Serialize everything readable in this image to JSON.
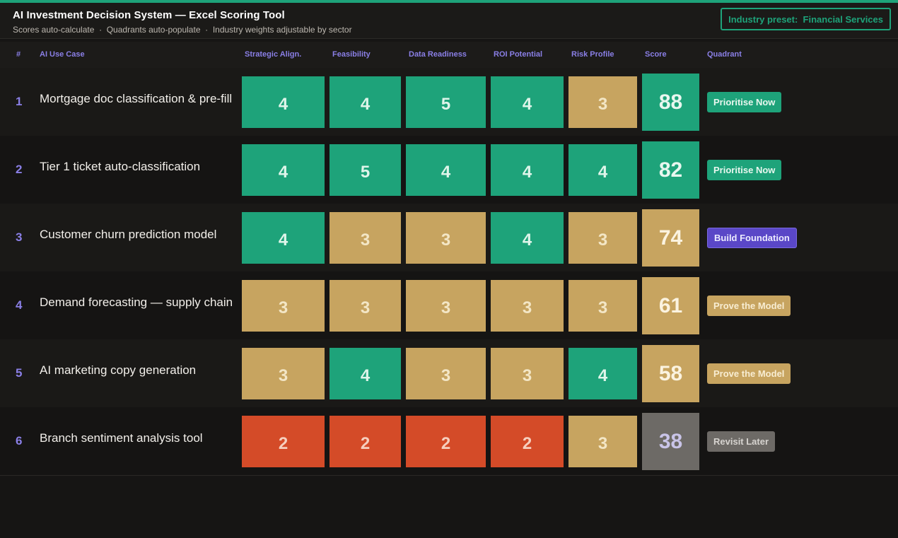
{
  "header": {
    "title": "AI Investment Decision System — Excel Scoring Tool",
    "subtitle": "Scores auto-calculate  ·  Quadrants auto-populate  ·  Industry weights adjustable by sector",
    "preset_label": "Industry preset:  Financial Services"
  },
  "columns": {
    "num": "#",
    "use_case": "AI Use Case",
    "strategic": "Strategic Align.",
    "feasibility": "Feasibility",
    "data": "Data Readiness",
    "roi": "ROI Potential",
    "risk": "Risk Profile",
    "score": "Score",
    "quadrant": "Quadrant"
  },
  "colors": {
    "green": "#1ea37a",
    "tan": "#c7a460",
    "red": "#d44b28",
    "purple": "#5a47c7",
    "grey": "#6d6a66",
    "accent_text": "#8a7fe6"
  },
  "rows": [
    {
      "num": "1",
      "name": "Mortgage doc classification & pre-fill",
      "scores": [
        "4",
        "4",
        "5",
        "4",
        "3"
      ],
      "levels": [
        "green",
        "green",
        "green",
        "green",
        "tan"
      ],
      "total": "88",
      "total_level": "green",
      "quadrant": "Prioritise Now",
      "quadrant_style": "green"
    },
    {
      "num": "2",
      "name": "Tier 1 ticket auto-classification",
      "scores": [
        "4",
        "5",
        "4",
        "4",
        "4"
      ],
      "levels": [
        "green",
        "green",
        "green",
        "green",
        "green"
      ],
      "total": "82",
      "total_level": "green",
      "quadrant": "Prioritise Now",
      "quadrant_style": "green"
    },
    {
      "num": "3",
      "name": "Customer churn prediction model",
      "scores": [
        "4",
        "3",
        "3",
        "4",
        "3"
      ],
      "levels": [
        "green",
        "tan",
        "tan",
        "green",
        "tan"
      ],
      "total": "74",
      "total_level": "tan",
      "quadrant": "Build Foundation",
      "quadrant_style": "purple"
    },
    {
      "num": "4",
      "name": "Demand forecasting — supply chain",
      "scores": [
        "3",
        "3",
        "3",
        "3",
        "3"
      ],
      "levels": [
        "tan",
        "tan",
        "tan",
        "tan",
        "tan"
      ],
      "total": "61",
      "total_level": "tan",
      "quadrant": "Prove the Model",
      "quadrant_style": "tan"
    },
    {
      "num": "5",
      "name": "AI marketing copy generation",
      "scores": [
        "3",
        "4",
        "3",
        "3",
        "4"
      ],
      "levels": [
        "tan",
        "green",
        "tan",
        "tan",
        "green"
      ],
      "total": "58",
      "total_level": "tan",
      "quadrant": "Prove the Model",
      "quadrant_style": "tan"
    },
    {
      "num": "6",
      "name": "Branch sentiment analysis tool",
      "scores": [
        "2",
        "2",
        "2",
        "2",
        "3"
      ],
      "levels": [
        "red",
        "red",
        "red",
        "red",
        "tan"
      ],
      "total": "38",
      "total_level": "grey",
      "quadrant": "Revisit Later",
      "quadrant_style": "grey"
    }
  ]
}
